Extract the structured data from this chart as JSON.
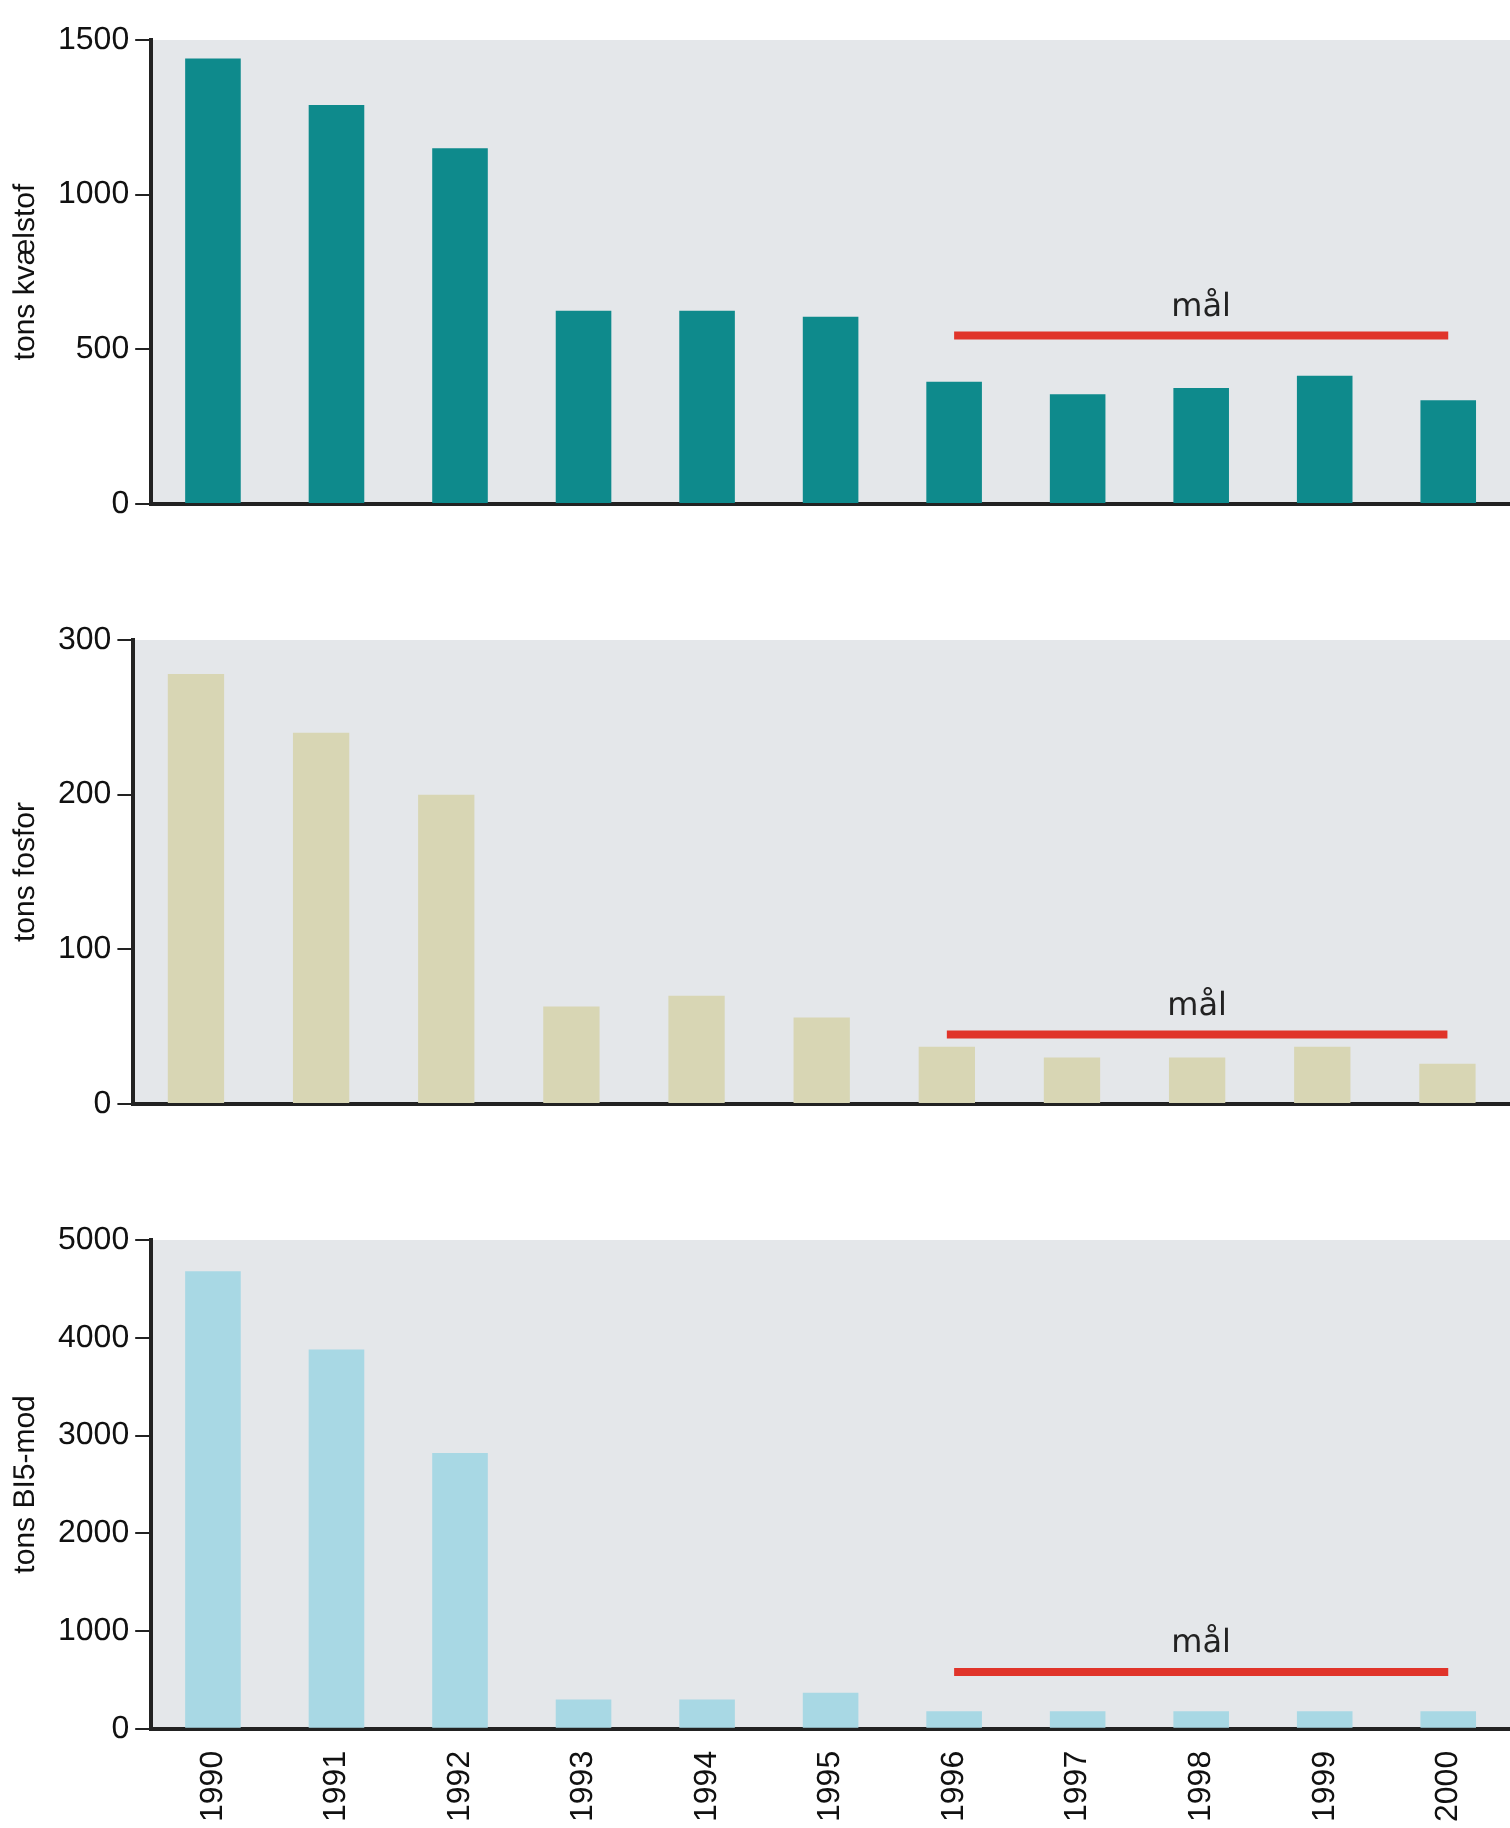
{
  "chart_data": [
    {
      "type": "bar",
      "ylabel": "tons kvælstof",
      "categories": [
        "1990",
        "1991",
        "1992",
        "1993",
        "1994",
        "1995",
        "1996",
        "1997",
        "1998",
        "1999",
        "2000"
      ],
      "ylim": [
        0,
        1500
      ],
      "yticks": [
        0,
        500,
        1000,
        1500
      ],
      "grid": false,
      "legend": false,
      "tick_labels": "y",
      "series": [
        {
          "color": "#0e8a8c",
          "values": [
            1440,
            1290,
            1150,
            625,
            625,
            605,
            395,
            355,
            375,
            415,
            335
          ]
        },
        {
          "type": "line",
          "name": "mål",
          "color": "#e0342a",
          "values": [
            null,
            null,
            null,
            null,
            null,
            null,
            545,
            545,
            545,
            545,
            545
          ]
        }
      ]
    },
    {
      "type": "bar",
      "ylabel": "tons fosfor",
      "categories": [
        "1990",
        "1991",
        "1992",
        "1993",
        "1994",
        "1995",
        "1996",
        "1997",
        "1998",
        "1999",
        "2000"
      ],
      "ylim": [
        0,
        300
      ],
      "yticks": [
        0,
        100,
        200,
        300
      ],
      "grid": false,
      "legend": false,
      "tick_labels": "y",
      "series": [
        {
          "color": "#d8d6b4",
          "values": [
            278,
            240,
            200,
            63,
            70,
            56,
            37,
            30,
            30,
            37,
            26
          ]
        },
        {
          "type": "line",
          "name": "mål",
          "color": "#e0342a",
          "values": [
            null,
            null,
            null,
            null,
            null,
            null,
            45,
            45,
            45,
            45,
            45
          ]
        }
      ]
    },
    {
      "type": "bar",
      "ylabel": "tons BI5-mod",
      "categories": [
        "1990",
        "1991",
        "1992",
        "1993",
        "1994",
        "1995",
        "1996",
        "1997",
        "1998",
        "1999",
        "2000"
      ],
      "ylim": [
        0,
        5000
      ],
      "yticks": [
        0,
        1000,
        2000,
        3000,
        4000,
        5000
      ],
      "grid": false,
      "legend": false,
      "series": [
        {
          "color": "#a8d8e4",
          "values": [
            4680,
            3880,
            2820,
            300,
            300,
            370,
            180,
            180,
            180,
            180,
            180
          ]
        },
        {
          "type": "line",
          "name": "mål",
          "color": "#e0342a",
          "values": [
            null,
            null,
            null,
            null,
            null,
            null,
            580,
            580,
            580,
            580,
            580
          ]
        }
      ]
    }
  ]
}
